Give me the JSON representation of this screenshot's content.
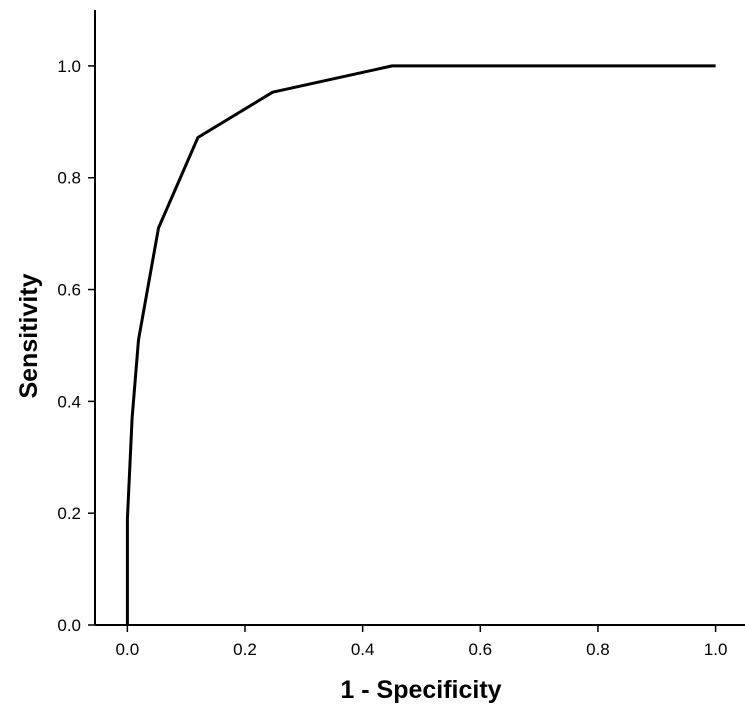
{
  "chart_data": {
    "type": "line",
    "title": "",
    "xlabel": "1 - Specificity",
    "ylabel": "Sensitivity",
    "xlim": [
      -0.055,
      1.05
    ],
    "ylim": [
      0.0,
      1.1
    ],
    "xticks": [
      0.0,
      0.2,
      0.4,
      0.6,
      0.8,
      1.0
    ],
    "yticks": [
      0.0,
      0.2,
      0.4,
      0.6,
      0.8,
      1.0
    ],
    "xtick_labels": [
      "0.0",
      "0.2",
      "0.4",
      "0.6",
      "0.8",
      "1.0"
    ],
    "ytick_labels": [
      "0.0",
      "0.2",
      "0.4",
      "0.6",
      "0.8",
      "1.0"
    ],
    "grid": false,
    "series": [
      {
        "color": "#000000",
        "points": [
          [
            0.0,
            0.0
          ],
          [
            0.0,
            0.19
          ],
          [
            0.008,
            0.37
          ],
          [
            0.019,
            0.51
          ],
          [
            0.053,
            0.71
          ],
          [
            0.12,
            0.872
          ],
          [
            0.247,
            0.953
          ],
          [
            0.45,
            1.0
          ],
          [
            1.0,
            1.0
          ]
        ]
      }
    ]
  }
}
